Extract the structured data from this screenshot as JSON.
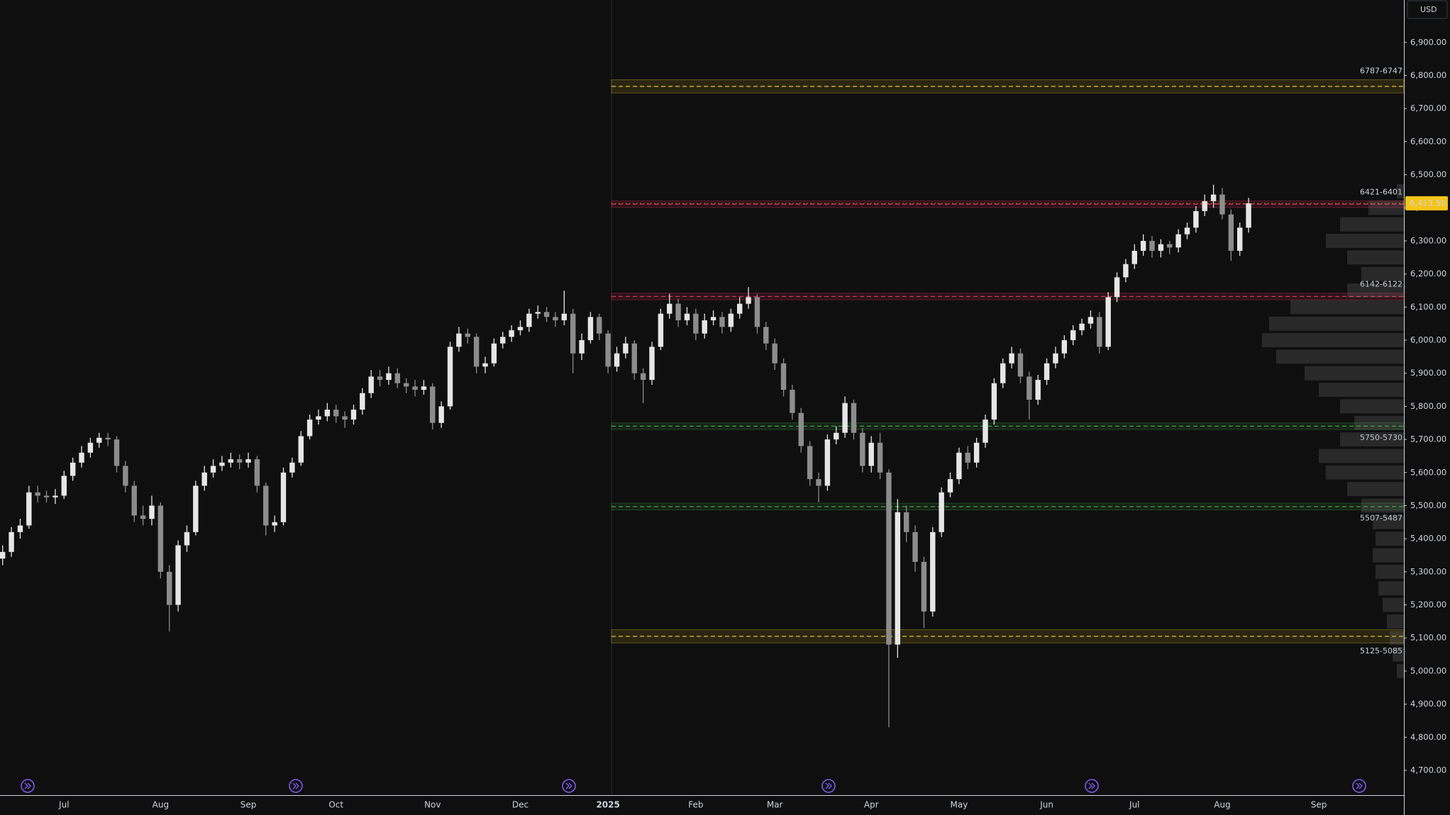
{
  "chart_data": {
    "type": "candlestick",
    "currency_button": "USD",
    "categories": [
      null,
      null,
      null,
      null,
      null,
      null,
      null,
      "Jul",
      null,
      null,
      null,
      null,
      null,
      null,
      null,
      null,
      null,
      null,
      "Aug",
      null,
      null,
      null,
      null,
      null,
      null,
      null,
      null,
      null,
      "Sep",
      null,
      null,
      null,
      null,
      null,
      null,
      null,
      null,
      null,
      "Oct",
      null,
      null,
      null,
      null,
      null,
      null,
      null,
      null,
      null,
      null,
      "Nov",
      null,
      null,
      null,
      null,
      null,
      null,
      null,
      null,
      null,
      "Dec",
      null,
      null,
      null,
      null,
      null,
      null,
      null,
      null,
      null,
      "2025",
      null,
      null,
      null,
      null,
      null,
      null,
      null,
      null,
      null,
      "Feb",
      null,
      null,
      null,
      null,
      null,
      null,
      null,
      null,
      "Mar",
      null,
      null,
      null,
      null,
      null,
      null,
      null,
      null,
      null,
      null,
      "Apr",
      null,
      null,
      null,
      null,
      null,
      null,
      null,
      null,
      null,
      "May",
      null,
      null,
      null,
      null,
      null,
      null,
      null,
      null,
      null,
      "Jun",
      null,
      null,
      null,
      null,
      null,
      null,
      null,
      null,
      null,
      "Jul",
      null,
      null,
      null,
      null,
      null,
      null,
      null,
      null,
      null,
      "Aug",
      null,
      null,
      null,
      null,
      null,
      null,
      null,
      null,
      null,
      null,
      "Sep",
      null,
      null,
      null,
      null,
      null,
      null,
      null,
      null,
      null
    ],
    "open": [
      5340,
      5360,
      5420,
      5440,
      5540,
      5530,
      5525,
      5530,
      5590,
      5630,
      5660,
      5690,
      5705,
      5700,
      5620,
      5560,
      5470,
      5460,
      5500,
      5300,
      5200,
      5380,
      5420,
      5560,
      5600,
      5620,
      5630,
      5640,
      5630,
      5640,
      5560,
      5440,
      5450,
      5600,
      5630,
      5710,
      5760,
      5770,
      5790,
      5770,
      5760,
      5790,
      5840,
      5890,
      5880,
      5900,
      5870,
      5860,
      5850,
      5860,
      5750,
      5800,
      5980,
      6020,
      6010,
      5920,
      5930,
      5990,
      6010,
      6030,
      6040,
      6080,
      6085,
      6070,
      6060,
      6080,
      5960,
      6000,
      6070,
      6020,
      5920,
      5960,
      5990,
      5900,
      5880,
      5980,
      6080,
      6110,
      6060,
      6080,
      6020,
      6060,
      6070,
      6040,
      6080,
      6110,
      6130,
      6040,
      5990,
      5930,
      5850,
      5780,
      5680,
      5580,
      5560,
      5700,
      5720,
      5810,
      5720,
      5620,
      5690,
      5600,
      5080,
      5480,
      5420,
      5330,
      5180,
      5420,
      5540,
      5580,
      5660,
      5630,
      5690,
      5760,
      5870,
      5930,
      5960,
      5890,
      5820,
      5880,
      5930,
      5960,
      6000,
      6030,
      6050,
      6070,
      5980,
      6130,
      6190,
      6230,
      6270,
      6300,
      6270,
      6290,
      6280,
      6320,
      6340,
      6390,
      6420,
      6440,
      6380,
      6270,
      6340,
      null,
      null,
      null,
      null,
      null,
      null,
      null,
      null,
      null,
      null,
      null,
      null,
      null,
      null,
      null,
      null,
      null
    ],
    "high": [
      5380,
      5435,
      5460,
      5560,
      5560,
      5545,
      5550,
      5605,
      5645,
      5680,
      5705,
      5720,
      5720,
      5710,
      5635,
      5575,
      5500,
      5530,
      5510,
      5320,
      5395,
      5440,
      5575,
      5620,
      5640,
      5650,
      5660,
      5655,
      5660,
      5650,
      5570,
      5470,
      5615,
      5645,
      5725,
      5775,
      5790,
      5810,
      5805,
      5785,
      5805,
      5855,
      5910,
      5910,
      5920,
      5915,
      5885,
      5880,
      5880,
      5870,
      5815,
      5995,
      6040,
      6035,
      6020,
      5950,
      6005,
      6025,
      6045,
      6060,
      6095,
      6105,
      6100,
      6085,
      6150,
      6095,
      6020,
      6085,
      6080,
      6030,
      5980,
      6010,
      6000,
      5915,
      5995,
      6095,
      6140,
      6125,
      6100,
      6095,
      6080,
      6090,
      6085,
      6095,
      6130,
      6160,
      6140,
      6055,
      6005,
      5945,
      5865,
      5795,
      5695,
      5600,
      5715,
      5740,
      5830,
      5820,
      5735,
      5710,
      5720,
      5610,
      5520,
      5500,
      5440,
      5345,
      5435,
      5555,
      5600,
      5675,
      5680,
      5705,
      5775,
      5885,
      5945,
      5980,
      5975,
      5905,
      5895,
      5945,
      5980,
      6015,
      6045,
      6065,
      6090,
      6085,
      6145,
      6205,
      6245,
      6290,
      6320,
      6315,
      6305,
      6300,
      6335,
      6355,
      6405,
      6440,
      6470,
      6460,
      6395,
      6355,
      6430,
      null,
      null,
      null,
      null,
      null,
      null,
      null,
      null,
      null,
      null,
      null,
      null,
      null,
      null,
      null,
      null,
      null
    ],
    "low": [
      5320,
      5345,
      5400,
      5430,
      5510,
      5510,
      5505,
      5520,
      5575,
      5615,
      5645,
      5675,
      5680,
      5600,
      5540,
      5450,
      5440,
      5440,
      5280,
      5120,
      5180,
      5360,
      5410,
      5545,
      5585,
      5605,
      5615,
      5610,
      5615,
      5540,
      5410,
      5420,
      5440,
      5585,
      5620,
      5700,
      5745,
      5755,
      5750,
      5735,
      5745,
      5775,
      5825,
      5860,
      5865,
      5855,
      5840,
      5830,
      5835,
      5730,
      5735,
      5790,
      5965,
      5990,
      5900,
      5900,
      5920,
      5975,
      5995,
      6015,
      6025,
      6065,
      6055,
      6040,
      6045,
      5900,
      5940,
      5990,
      6000,
      5900,
      5905,
      5945,
      5880,
      5810,
      5865,
      5970,
      6065,
      6040,
      6045,
      6000,
      6005,
      6045,
      6020,
      6025,
      6065,
      6095,
      6020,
      5970,
      5910,
      5830,
      5760,
      5660,
      5560,
      5510,
      5545,
      5685,
      5705,
      5700,
      5600,
      5600,
      5580,
      4830,
      5040,
      5390,
      5300,
      5130,
      5165,
      5405,
      5525,
      5565,
      5610,
      5615,
      5675,
      5745,
      5855,
      5915,
      5870,
      5760,
      5805,
      5865,
      5915,
      5945,
      5985,
      6015,
      6035,
      5960,
      5970,
      6115,
      6175,
      6215,
      6255,
      6250,
      6250,
      6260,
      6265,
      6305,
      6325,
      6375,
      6400,
      6365,
      6240,
      6255,
      6325,
      null,
      null,
      null,
      null,
      null,
      null,
      null,
      null,
      null,
      null,
      null,
      null,
      null,
      null,
      null,
      null,
      null
    ],
    "close": [
      5360,
      5420,
      5440,
      5540,
      5530,
      5525,
      5530,
      5590,
      5630,
      5660,
      5690,
      5705,
      5700,
      5620,
      5560,
      5470,
      5460,
      5500,
      5300,
      5200,
      5380,
      5420,
      5560,
      5600,
      5620,
      5630,
      5640,
      5630,
      5640,
      5560,
      5440,
      5450,
      5600,
      5630,
      5710,
      5760,
      5770,
      5790,
      5770,
      5760,
      5790,
      5840,
      5890,
      5880,
      5900,
      5870,
      5860,
      5850,
      5860,
      5750,
      5800,
      5980,
      6020,
      6010,
      5920,
      5930,
      5990,
      6010,
      6030,
      6040,
      6080,
      6085,
      6070,
      6060,
      6080,
      5960,
      6000,
      6070,
      6020,
      5920,
      5960,
      5990,
      5900,
      5880,
      5980,
      6080,
      6110,
      6060,
      6080,
      6020,
      6060,
      6070,
      6040,
      6080,
      6110,
      6130,
      6040,
      5990,
      5930,
      5850,
      5780,
      5680,
      5580,
      5560,
      5700,
      5720,
      5810,
      5720,
      5620,
      5690,
      5600,
      5080,
      5480,
      5420,
      5330,
      5180,
      5420,
      5540,
      5580,
      5660,
      5630,
      5690,
      5760,
      5870,
      5930,
      5960,
      5890,
      5820,
      5880,
      5930,
      5960,
      6000,
      6030,
      6050,
      6070,
      5980,
      6130,
      6190,
      6230,
      6270,
      6300,
      6270,
      6290,
      6280,
      6320,
      6340,
      6390,
      6420,
      6440,
      6380,
      6270,
      6340,
      6413.5,
      null,
      null,
      null,
      null,
      null,
      null,
      null,
      null,
      null,
      null,
      null,
      null,
      null,
      null,
      null,
      null,
      null
    ],
    "up_color": "#e6e6e6",
    "down_color": "#8c8c8c",
    "ylim": [
      4625,
      7028
    ],
    "yticks": [
      {
        "value": 6900,
        "label": "6,900.00"
      },
      {
        "value": 6800,
        "label": "6,800.00"
      },
      {
        "value": 6700,
        "label": "6,700.00"
      },
      {
        "value": 6600,
        "label": "6,600.00"
      },
      {
        "value": 6500,
        "label": "6,500.00"
      },
      {
        "value": 6400,
        "label": "6,400.00"
      },
      {
        "value": 6300,
        "label": "6,300.00"
      },
      {
        "value": 6200,
        "label": "6,200.00"
      },
      {
        "value": 6100,
        "label": "6,100.00"
      },
      {
        "value": 6000,
        "label": "6,000.00"
      },
      {
        "value": 5900,
        "label": "5,900.00"
      },
      {
        "value": 5800,
        "label": "5,800.00"
      },
      {
        "value": 5700,
        "label": "5,700.00"
      },
      {
        "value": 5600,
        "label": "5,600.00"
      },
      {
        "value": 5500,
        "label": "5,500.00"
      },
      {
        "value": 5400,
        "label": "5,400.00"
      },
      {
        "value": 5300,
        "label": "5,300.00"
      },
      {
        "value": 5200,
        "label": "5,200.00"
      },
      {
        "value": 5100,
        "label": "5,100.00"
      },
      {
        "value": 5000,
        "label": "5,000.00"
      },
      {
        "value": 4900,
        "label": "4,900.00"
      },
      {
        "value": 4800,
        "label": "4,800.00"
      },
      {
        "value": 4700,
        "label": "4,700.00"
      }
    ],
    "grid": false,
    "last_price": {
      "value": 6413.5,
      "label": "6,413.50",
      "color": "#f5c518"
    },
    "zones": [
      {
        "label": "6787-6747",
        "high": 6787,
        "low": 6747,
        "color": "#e6c229",
        "label_position": "above"
      },
      {
        "label": "6421-6401",
        "high": 6421,
        "low": 6401,
        "color": "#e0325a",
        "label_position": "above"
      },
      {
        "label": "6142-6122",
        "high": 6142,
        "low": 6122,
        "color": "#e0325a",
        "label_position": "above"
      },
      {
        "label": "5750-5730",
        "high": 5750,
        "low": 5730,
        "color": "#43a047",
        "label_position": "below"
      },
      {
        "label": "5507-5487",
        "high": 5507,
        "low": 5487,
        "color": "#43a047",
        "label_position": "below"
      },
      {
        "label": "5125-5085",
        "high": 5125,
        "low": 5085,
        "color": "#e6c229",
        "label_position": "below"
      }
    ],
    "volume_profile": {
      "prices": [
        5000,
        5050,
        5100,
        5150,
        5200,
        5250,
        5300,
        5350,
        5400,
        5450,
        5500,
        5550,
        5600,
        5650,
        5700,
        5750,
        5800,
        5850,
        5900,
        5950,
        6000,
        6050,
        6100,
        6150,
        6200,
        6250,
        6300,
        6350,
        6400,
        6450
      ],
      "values": [
        5,
        8,
        10,
        12,
        15,
        18,
        20,
        22,
        20,
        22,
        30,
        40,
        55,
        60,
        45,
        35,
        45,
        60,
        70,
        90,
        100,
        95,
        80,
        40,
        30,
        40,
        55,
        45,
        25,
        5
      ],
      "color": "#8a8a8a"
    }
  }
}
